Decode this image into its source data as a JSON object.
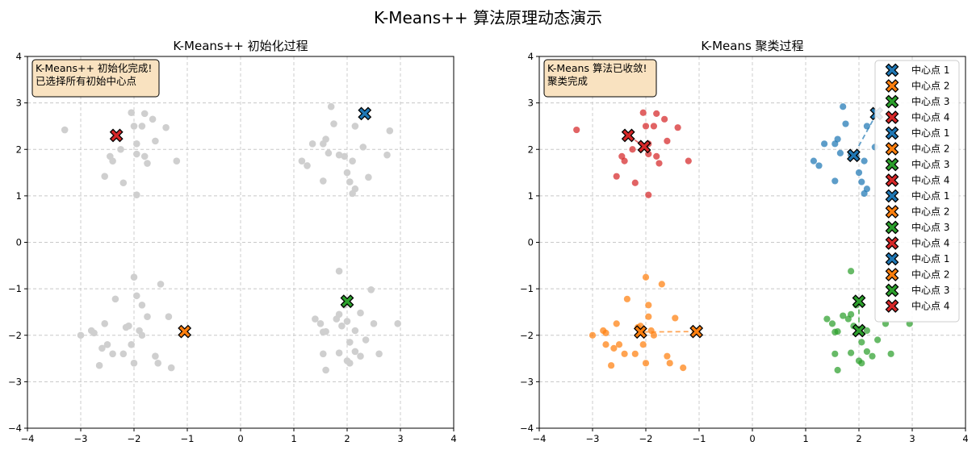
{
  "figure": {
    "suptitle": "K-Means++ 算法原理动态演示"
  },
  "colors": {
    "c1": "#1f77b4",
    "c2": "#ff7f0e",
    "c3": "#2ca02c",
    "c4": "#d62728",
    "gray": "#cfcfcf",
    "grid": "#c8c8c8",
    "annotation_bg": "#f9e2c0"
  },
  "chart_data": [
    {
      "type": "scatter",
      "title": "K-Means++ 初始化过程",
      "xlim": [
        -4,
        4
      ],
      "ylim": [
        -4,
        4
      ],
      "xticks": [
        -4,
        -3,
        -2,
        -1,
        0,
        1,
        2,
        3,
        4
      ],
      "yticks": [
        -4,
        -3,
        -2,
        -1,
        0,
        1,
        2,
        3,
        4
      ],
      "grid": true,
      "annotation": [
        "K-Means++ 初始化完成!",
        "已选择所有初始中心点"
      ],
      "points_color": "gray",
      "points": [
        [
          -2.05,
          2.79
        ],
        [
          -1.8,
          2.77
        ],
        [
          -1.65,
          2.65
        ],
        [
          -2.0,
          2.5
        ],
        [
          -1.85,
          2.5
        ],
        [
          -1.4,
          2.47
        ],
        [
          -3.3,
          2.42
        ],
        [
          -1.6,
          2.18
        ],
        [
          -1.95,
          2.12
        ],
        [
          -2.25,
          2.0
        ],
        [
          -2.45,
          1.85
        ],
        [
          -2.4,
          1.75
        ],
        [
          -1.95,
          1.9
        ],
        [
          -1.8,
          1.85
        ],
        [
          -1.75,
          1.7
        ],
        [
          -1.2,
          1.75
        ],
        [
          -2.55,
          1.42
        ],
        [
          -2.2,
          1.28
        ],
        [
          -1.95,
          1.02
        ],
        [
          1.7,
          2.92
        ],
        [
          1.75,
          2.55
        ],
        [
          2.15,
          2.5
        ],
        [
          2.8,
          2.4
        ],
        [
          1.6,
          2.22
        ],
        [
          1.55,
          2.12
        ],
        [
          1.35,
          2.12
        ],
        [
          1.65,
          1.92
        ],
        [
          1.95,
          1.85
        ],
        [
          1.85,
          1.88
        ],
        [
          2.75,
          1.88
        ],
        [
          2.3,
          2.05
        ],
        [
          2.1,
          1.75
        ],
        [
          1.15,
          1.75
        ],
        [
          1.25,
          1.65
        ],
        [
          2.0,
          1.5
        ],
        [
          2.4,
          1.4
        ],
        [
          1.55,
          1.32
        ],
        [
          2.05,
          1.3
        ],
        [
          2.15,
          1.15
        ],
        [
          2.1,
          1.05
        ],
        [
          -2.0,
          -0.75
        ],
        [
          -1.5,
          -0.9
        ],
        [
          -1.95,
          -1.15
        ],
        [
          -1.85,
          -1.35
        ],
        [
          -2.35,
          -1.22
        ],
        [
          -1.75,
          -1.6
        ],
        [
          -1.35,
          -1.6
        ],
        [
          -2.8,
          -1.9
        ],
        [
          -3.0,
          -2.0
        ],
        [
          -2.75,
          -1.95
        ],
        [
          -2.15,
          -1.83
        ],
        [
          -2.1,
          -1.8
        ],
        [
          -1.9,
          -1.9
        ],
        [
          -1.85,
          -2.0
        ],
        [
          -2.55,
          -1.75
        ],
        [
          -1.6,
          -2.45
        ],
        [
          -2.05,
          -2.2
        ],
        [
          -2.6,
          -2.28
        ],
        [
          -2.5,
          -2.2
        ],
        [
          -2.65,
          -2.65
        ],
        [
          -2.4,
          -2.4
        ],
        [
          -2.2,
          -2.4
        ],
        [
          -1.55,
          -2.6
        ],
        [
          -2.0,
          -2.6
        ],
        [
          -1.3,
          -2.7
        ],
        [
          1.85,
          -0.62
        ],
        [
          2.45,
          -1.02
        ],
        [
          1.95,
          -1.35
        ],
        [
          1.85,
          -1.55
        ],
        [
          2.25,
          -1.52
        ],
        [
          2.0,
          -1.7
        ],
        [
          1.4,
          -1.65
        ],
        [
          1.5,
          -1.75
        ],
        [
          1.8,
          -1.65
        ],
        [
          1.9,
          -1.8
        ],
        [
          2.5,
          -1.75
        ],
        [
          2.95,
          -1.75
        ],
        [
          1.6,
          -1.92
        ],
        [
          1.55,
          -1.93
        ],
        [
          2.15,
          -1.9
        ],
        [
          2.05,
          -2.15
        ],
        [
          2.35,
          -2.1
        ],
        [
          1.55,
          -2.4
        ],
        [
          1.85,
          -2.38
        ],
        [
          2.15,
          -2.35
        ],
        [
          2.6,
          -2.4
        ],
        [
          2.0,
          -2.55
        ],
        [
          2.05,
          -2.6
        ],
        [
          1.6,
          -2.75
        ],
        [
          2.25,
          -2.45
        ]
      ],
      "centers": [
        {
          "x": 2.33,
          "y": 2.77,
          "color": "c1"
        },
        {
          "x": -1.05,
          "y": -1.92,
          "color": "c2"
        },
        {
          "x": 2.0,
          "y": -1.27,
          "color": "c3"
        },
        {
          "x": -2.33,
          "y": 2.3,
          "color": "c4"
        }
      ]
    },
    {
      "type": "scatter",
      "title": "K-Means 聚类过程",
      "xlim": [
        -4,
        4
      ],
      "ylim": [
        -4,
        4
      ],
      "xticks": [
        -4,
        -3,
        -2,
        -1,
        0,
        1,
        2,
        3,
        4
      ],
      "yticks": [
        -4,
        -3,
        -2,
        -1,
        0,
        1,
        2,
        3,
        4
      ],
      "grid": true,
      "annotation": [
        "K-Means 算法已收敛!",
        "聚类完成"
      ],
      "legend": {
        "placement": "top-right",
        "entries": [
          {
            "label": "中心点 1",
            "color": "c1"
          },
          {
            "label": "中心点 2",
            "color": "c2"
          },
          {
            "label": "中心点 3",
            "color": "c3"
          },
          {
            "label": "中心点 4",
            "color": "c4"
          },
          {
            "label": "中心点 1",
            "color": "c1"
          },
          {
            "label": "中心点 2",
            "color": "c2"
          },
          {
            "label": "中心点 3",
            "color": "c3"
          },
          {
            "label": "中心点 4",
            "color": "c4"
          },
          {
            "label": "中心点 1",
            "color": "c1"
          },
          {
            "label": "中心点 2",
            "color": "c2"
          },
          {
            "label": "中心点 3",
            "color": "c3"
          },
          {
            "label": "中心点 4",
            "color": "c4"
          },
          {
            "label": "中心点 1",
            "color": "c1"
          },
          {
            "label": "中心点 2",
            "color": "c2"
          },
          {
            "label": "中心点 3",
            "color": "c3"
          },
          {
            "label": "中心点 4",
            "color": "c4"
          }
        ]
      },
      "clusters": [
        {
          "color": "c4",
          "points": [
            [
              -2.05,
              2.79
            ],
            [
              -1.8,
              2.77
            ],
            [
              -1.65,
              2.65
            ],
            [
              -2.0,
              2.5
            ],
            [
              -1.85,
              2.5
            ],
            [
              -1.4,
              2.47
            ],
            [
              -3.3,
              2.42
            ],
            [
              -1.6,
              2.18
            ],
            [
              -1.95,
              2.12
            ],
            [
              -2.25,
              2.0
            ],
            [
              -2.45,
              1.85
            ],
            [
              -2.4,
              1.75
            ],
            [
              -1.95,
              1.9
            ],
            [
              -1.8,
              1.85
            ],
            [
              -1.75,
              1.7
            ],
            [
              -1.2,
              1.75
            ],
            [
              -2.55,
              1.42
            ],
            [
              -2.2,
              1.28
            ],
            [
              -1.95,
              1.02
            ]
          ]
        },
        {
          "color": "c1",
          "points": [
            [
              1.7,
              2.92
            ],
            [
              1.75,
              2.55
            ],
            [
              2.15,
              2.5
            ],
            [
              1.6,
              2.22
            ],
            [
              1.55,
              2.12
            ],
            [
              1.35,
              2.12
            ],
            [
              1.65,
              1.92
            ],
            [
              1.95,
              1.85
            ],
            [
              1.85,
              1.88
            ],
            [
              2.3,
              2.05
            ],
            [
              2.1,
              1.75
            ],
            [
              1.15,
              1.75
            ],
            [
              1.25,
              1.65
            ],
            [
              2.0,
              1.5
            ],
            [
              1.55,
              1.32
            ],
            [
              2.05,
              1.3
            ],
            [
              2.15,
              1.15
            ],
            [
              2.1,
              1.05
            ]
          ]
        },
        {
          "color": "c2",
          "points": [
            [
              -2.0,
              -0.75
            ],
            [
              -1.7,
              -0.9
            ],
            [
              -1.95,
              -1.35
            ],
            [
              -2.35,
              -1.22
            ],
            [
              -1.95,
              -1.6
            ],
            [
              -1.45,
              -1.63
            ],
            [
              -2.8,
              -1.9
            ],
            [
              -3.0,
              -2.0
            ],
            [
              -2.75,
              -1.95
            ],
            [
              -2.15,
              -1.83
            ],
            [
              -2.1,
              -1.8
            ],
            [
              -1.9,
              -1.9
            ],
            [
              -1.85,
              -2.0
            ],
            [
              -2.55,
              -1.75
            ],
            [
              -1.6,
              -2.45
            ],
            [
              -2.05,
              -2.2
            ],
            [
              -2.6,
              -2.28
            ],
            [
              -2.5,
              -2.2
            ],
            [
              -2.65,
              -2.65
            ],
            [
              -2.4,
              -2.4
            ],
            [
              -2.2,
              -2.4
            ],
            [
              -1.55,
              -2.6
            ],
            [
              -2.0,
              -2.6
            ],
            [
              -1.3,
              -2.7
            ],
            [
              -2.75,
              -2.2
            ]
          ]
        },
        {
          "color": "c3",
          "points": [
            [
              1.85,
              -0.62
            ],
            [
              1.95,
              -1.35
            ],
            [
              1.85,
              -1.55
            ],
            [
              1.4,
              -1.65
            ],
            [
              1.5,
              -1.75
            ],
            [
              1.8,
              -1.65
            ],
            [
              1.9,
              -1.8
            ],
            [
              2.5,
              -1.75
            ],
            [
              2.95,
              -1.75
            ],
            [
              1.6,
              -1.92
            ],
            [
              1.55,
              -1.93
            ],
            [
              2.15,
              -1.9
            ],
            [
              2.05,
              -2.15
            ],
            [
              2.35,
              -2.1
            ],
            [
              1.55,
              -2.4
            ],
            [
              1.85,
              -2.38
            ],
            [
              2.15,
              -2.35
            ],
            [
              2.6,
              -2.4
            ],
            [
              2.0,
              -2.55
            ],
            [
              2.05,
              -2.6
            ],
            [
              1.6,
              -2.75
            ],
            [
              2.25,
              -2.45
            ],
            [
              1.7,
              -1.58
            ]
          ]
        }
      ],
      "centers": [
        {
          "x": 2.33,
          "y": 2.77,
          "color": "c1"
        },
        {
          "x": 1.9,
          "y": 1.87,
          "color": "c1"
        },
        {
          "x": -1.05,
          "y": -1.92,
          "color": "c2"
        },
        {
          "x": -2.1,
          "y": -1.93,
          "color": "c2"
        },
        {
          "x": 2.0,
          "y": -1.27,
          "color": "c3"
        },
        {
          "x": 2.0,
          "y": -1.9,
          "color": "c3"
        },
        {
          "x": -2.33,
          "y": 2.3,
          "color": "c4"
        },
        {
          "x": -2.03,
          "y": 2.06,
          "color": "c4"
        }
      ],
      "trajectories": [
        {
          "color": "c1",
          "path": [
            [
              2.33,
              2.77
            ],
            [
              1.9,
              1.87
            ]
          ]
        },
        {
          "color": "c2",
          "path": [
            [
              -1.05,
              -1.92
            ],
            [
              -2.1,
              -1.93
            ]
          ]
        },
        {
          "color": "c3",
          "path": [
            [
              2.0,
              -1.27
            ],
            [
              2.0,
              -1.9
            ]
          ]
        },
        {
          "color": "c4",
          "path": [
            [
              -2.33,
              2.3
            ],
            [
              -2.03,
              2.06
            ]
          ]
        }
      ]
    }
  ]
}
